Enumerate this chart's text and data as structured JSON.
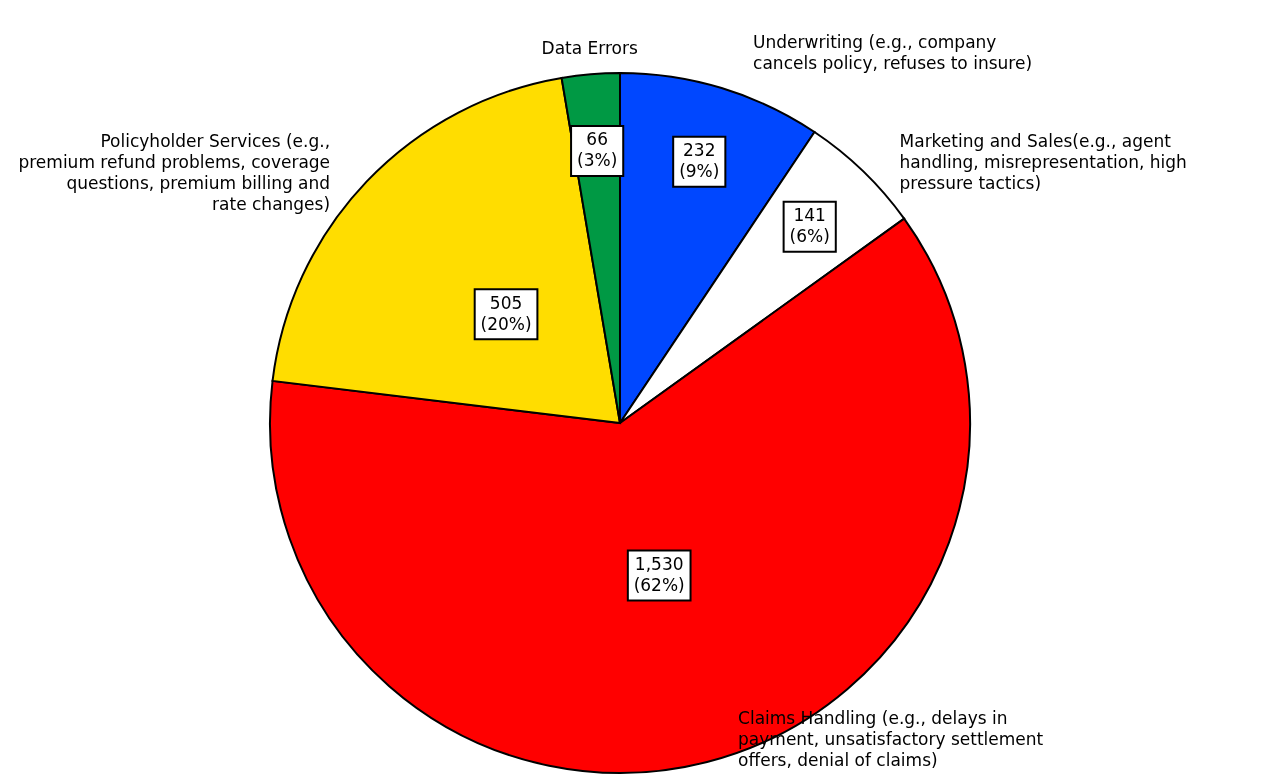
{
  "chart_data": {
    "type": "pie",
    "categories": [
      "Underwriting (e.g., company cancels policy, refuses to insure)",
      "Marketing and Sales(e.g., agent handling, misrepresentation, high pressure tactics)",
      "Claims Handling (e.g., delays in payment, unsatisfactory settlement offers, denial of claims)",
      "Policyholder Services (e.g., premium refund problems, coverage questions, premium billing and rate changes)",
      "Data Errors"
    ],
    "values": [
      232,
      141,
      1530,
      505,
      66
    ],
    "colors": [
      "#0047ff",
      "#ffffff",
      "#ff0000",
      "#ffdd00",
      "#009944"
    ],
    "value_labels": [
      "232 (9%)",
      "141 (6%)",
      "1,530 (62%)",
      "505 (20%)",
      "66 (3%)"
    ]
  }
}
